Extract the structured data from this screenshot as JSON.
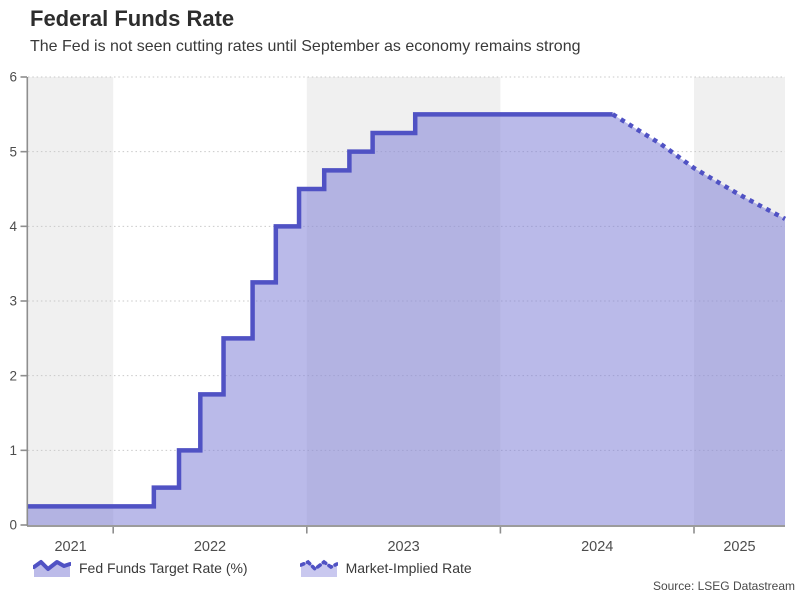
{
  "header": {
    "title": "Federal Funds Rate",
    "subtitle": "The Fed is not seen cutting rates until September as economy remains strong"
  },
  "legend": {
    "items": [
      {
        "label": "Fed Funds Target Rate (%)",
        "style": "solid-area"
      },
      {
        "label": "Market-Implied Rate",
        "style": "dotted-line"
      }
    ]
  },
  "footer": {
    "source": "Source: LSEG Datastream"
  },
  "colors": {
    "line": "#5052c4",
    "area_fill": "rgba(130,130,215,0.55)",
    "legend_fill": "#bcbbe9",
    "band_gray": "#f0f0f0",
    "grid": "#c9c9c9",
    "axis": "#8e8e8e",
    "tick_label": "#4d4d4d"
  },
  "chart_data": {
    "type": "area",
    "title": "Federal Funds Rate",
    "subtitle": "The Fed is not seen cutting rates until September as economy remains strong",
    "xlabel": "",
    "ylabel": "",
    "x_unit": "year (fractional)",
    "y_unit": "percent",
    "x_range": [
      2021.56,
      2025.47
    ],
    "y_range": [
      0,
      6
    ],
    "y_ticks": [
      0,
      1,
      2,
      3,
      4,
      5,
      6
    ],
    "x_axis_ticks": [
      2022,
      2023,
      2024,
      2025
    ],
    "x_tick_labels": [
      {
        "text": "2021",
        "x": 2021.78
      },
      {
        "text": "2022",
        "x": 2022.5
      },
      {
        "text": "2023",
        "x": 2023.5
      },
      {
        "text": "2024",
        "x": 2024.5
      },
      {
        "text": "2025",
        "x": 2025.235
      }
    ],
    "background_gray_bands": [
      [
        2021.56,
        2022
      ],
      [
        2023,
        2024
      ],
      [
        2025,
        2025.47
      ]
    ],
    "grid": "dotted horizontal",
    "legend_position": "bottom-left",
    "series": [
      {
        "name": "Fed Funds Target Rate (%)",
        "style": "solid-step-area",
        "points": [
          [
            2021.56,
            0.25
          ],
          [
            2022.21,
            0.5
          ],
          [
            2022.34,
            1.0
          ],
          [
            2022.45,
            1.75
          ],
          [
            2022.57,
            2.5
          ],
          [
            2022.72,
            3.25
          ],
          [
            2022.84,
            4.0
          ],
          [
            2022.96,
            4.5
          ],
          [
            2023.09,
            4.75
          ],
          [
            2023.22,
            5.0
          ],
          [
            2023.34,
            5.25
          ],
          [
            2023.56,
            5.5
          ],
          [
            2024.58,
            5.5
          ]
        ]
      },
      {
        "name": "Market-Implied Rate",
        "style": "dotted-line",
        "points": [
          [
            2024.58,
            5.5
          ],
          [
            2024.83,
            5.1
          ],
          [
            2025.0,
            4.78
          ],
          [
            2025.23,
            4.43
          ],
          [
            2025.47,
            4.1
          ]
        ]
      }
    ]
  }
}
